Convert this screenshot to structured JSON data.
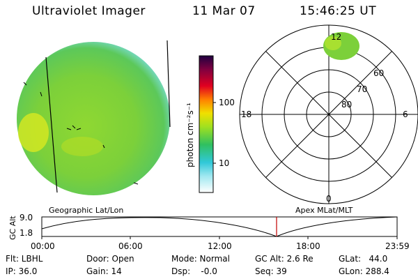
{
  "header": {
    "instrument": "Ultraviolet Imager",
    "date": "11 Mar 07",
    "time": "15:46:25 UT"
  },
  "colorbar": {
    "label": "photon cm⁻²s⁻¹",
    "ticks": [
      "100",
      "10"
    ],
    "tick_values": [
      100,
      10
    ],
    "scale": "log",
    "colors_bottom_to_top": [
      "#ffffff",
      "#40d0e0",
      "#30c060",
      "#a0e020",
      "#f0e000",
      "#ff8000",
      "#e00020",
      "#800040",
      "#200040"
    ]
  },
  "geo_panel": {
    "label": "Geographic Lat/Lon"
  },
  "polar_panel": {
    "label": "Apex MLat/MLT",
    "lat_rings": [
      "60",
      "70",
      "80"
    ],
    "mlt_labels": {
      "top": "12",
      "left": "18",
      "right": "6",
      "bottom": "0"
    }
  },
  "altitude_strip": {
    "ylabel": "GC Alt",
    "yticks": [
      "9.0",
      "1.8"
    ],
    "time_ticks": [
      "00:00",
      "06:00",
      "12:00",
      "18:00",
      "23:59"
    ],
    "current_time_color": "#c00000"
  },
  "status": {
    "filter": "Flt: LBHL",
    "ip": "IP: 36.0",
    "door": "Door: Open",
    "gain": "Gain: 14",
    "mode": "Mode: Normal",
    "dsp": "Dsp:    -0.0",
    "gc_alt": "GC Alt: 2.6 Re",
    "seq": "Seq: 39",
    "glat": "GLat:   44.0",
    "glon": "GLon: 288.4"
  }
}
